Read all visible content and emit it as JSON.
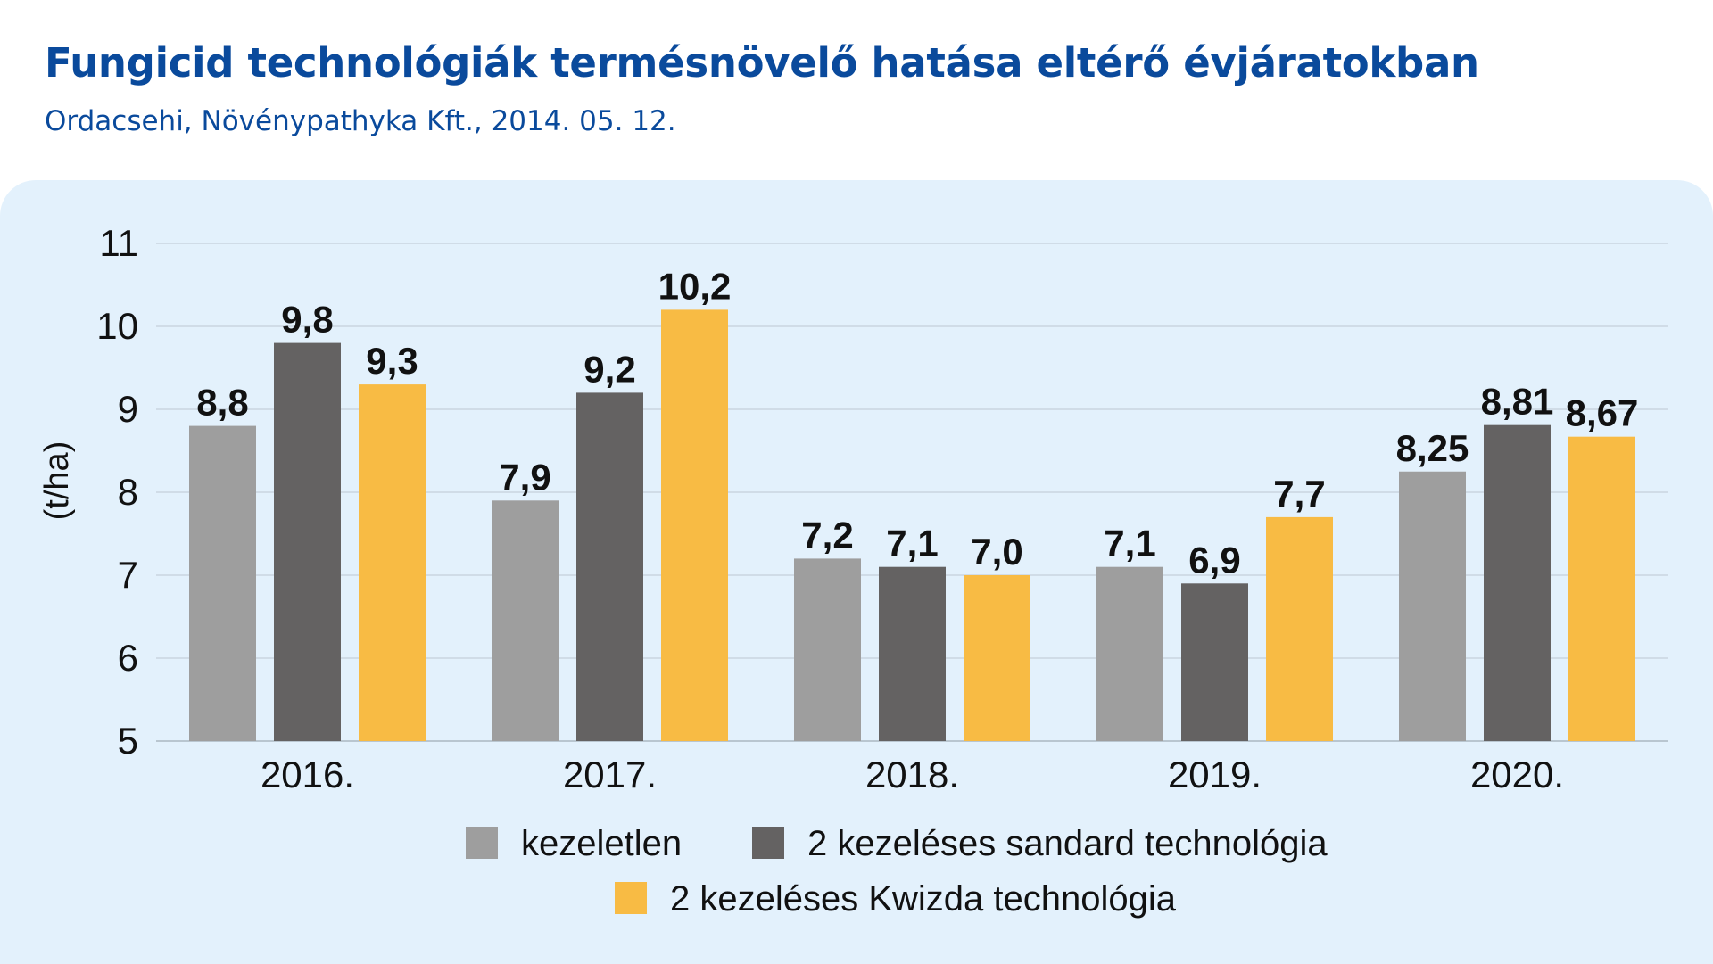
{
  "title": "Fungicid technológiák termésnövelő hatása eltérő évjáratokban",
  "subtitle": "Ordacsehi, Növénypathyka Kft., 2014. 05. 12.",
  "colors": {
    "title": "#0a4a9c",
    "panel": "#e3f1fc",
    "grid": "#c9d6e0",
    "series": [
      "#9e9e9e",
      "#646262",
      "#f8bb44"
    ]
  },
  "chart_data": {
    "type": "bar",
    "title": "",
    "xlabel": "",
    "ylabel": "(t/ha)",
    "ylim": [
      5,
      11
    ],
    "yticks": [
      "5",
      "6",
      "7",
      "8",
      "9",
      "10",
      "11"
    ],
    "grid": true,
    "legend_position": "bottom",
    "categories": [
      "2016.",
      "2017.",
      "2018.",
      "2019.",
      "2020."
    ],
    "series": [
      {
        "name": "kezeletlen",
        "values": [
          8.8,
          7.9,
          7.2,
          7.1,
          8.25
        ],
        "labels": [
          "8,8",
          "7,9",
          "7,2",
          "7,1",
          "8,25"
        ]
      },
      {
        "name": "2 kezeléses sandard technológia",
        "values": [
          9.8,
          9.2,
          7.1,
          6.9,
          8.81
        ],
        "labels": [
          "9,8",
          "9,2",
          "7,1",
          "6,9",
          "8,81"
        ]
      },
      {
        "name": "2 kezeléses Kwizda technológia",
        "values": [
          9.3,
          10.2,
          7.0,
          7.7,
          8.67
        ],
        "labels": [
          "9,3",
          "10,2",
          "7,0",
          "7,7",
          "8,67"
        ]
      }
    ]
  }
}
